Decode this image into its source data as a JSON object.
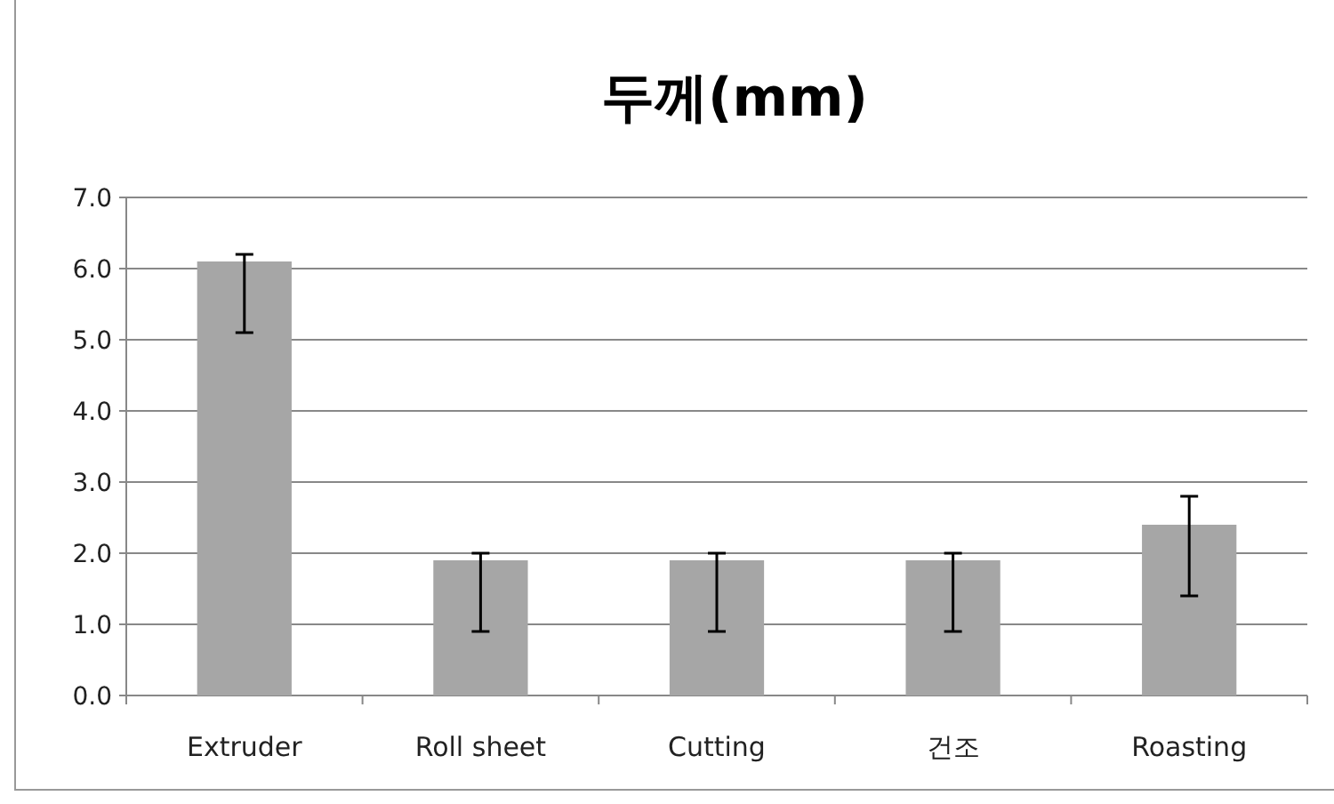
{
  "chart_data": {
    "type": "bar",
    "title": "두께(mm)",
    "categories": [
      "Extruder",
      "Roll sheet",
      "Cutting",
      "건조",
      "Roasting"
    ],
    "values": [
      6.1,
      1.9,
      1.9,
      1.9,
      2.4
    ],
    "errors": [
      [
        5.1,
        6.2
      ],
      [
        0.9,
        2.0
      ],
      [
        0.9,
        2.0
      ],
      [
        0.9,
        2.0
      ],
      [
        1.4,
        2.8
      ]
    ],
    "color": "#a6a6a6",
    "ylim": [
      0,
      7
    ],
    "yticks": [
      {
        "value": 0,
        "label": "0.0"
      },
      {
        "value": 1,
        "label": "1.0"
      },
      {
        "value": 2,
        "label": "2.0"
      },
      {
        "value": 3,
        "label": "3.0"
      },
      {
        "value": 4,
        "label": "4.0"
      },
      {
        "value": 5,
        "label": "5.0"
      },
      {
        "value": 6,
        "label": "6.0"
      },
      {
        "value": 7,
        "label": "7.0"
      }
    ],
    "grid": "y"
  }
}
